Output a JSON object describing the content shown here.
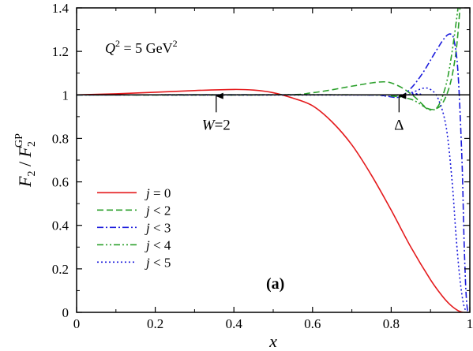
{
  "chart_data": {
    "type": "line",
    "panel_label": "(a)",
    "xlabel": "x",
    "ylabel": {
      "main": "F",
      "sub1": "2",
      "slash": " / ",
      "main2": "F",
      "sub2": "2",
      "sup2": "GP"
    },
    "condition": {
      "q": "Q",
      "exp": "2",
      "rest": " = 5 GeV",
      "unit_exp": "2"
    },
    "xlim": [
      0,
      1
    ],
    "ylim": [
      0,
      1.4
    ],
    "x_ticks": [
      0,
      0.2,
      0.4,
      0.6,
      0.8,
      1
    ],
    "x_tick_labels": [
      "0",
      "0.2",
      "0.4",
      "0.6",
      "0.8",
      "1"
    ],
    "y_ticks": [
      0,
      0.2,
      0.4,
      0.6,
      0.8,
      1,
      1.2,
      1.4
    ],
    "y_tick_labels": [
      "0",
      "0.2",
      "0.4",
      "0.6",
      "0.8",
      "1",
      "1.2",
      "1.4"
    ],
    "annotations": [
      {
        "text": "W=2",
        "x": 0.355,
        "arrow_from_y": 0.92,
        "arrow_to_y": 0.995
      },
      {
        "text": "Δ",
        "x": 0.82,
        "arrow_from_y": 0.92,
        "arrow_to_y": 0.995
      }
    ],
    "legend": {
      "position": "left-middle"
    },
    "series": [
      {
        "name": "j = 0",
        "color": "#e41a1c",
        "dash": "solid",
        "points": [
          [
            0,
            1.0
          ],
          [
            0.1,
            1.005
          ],
          [
            0.2,
            1.012
          ],
          [
            0.3,
            1.02
          ],
          [
            0.4,
            1.025
          ],
          [
            0.45,
            1.022
          ],
          [
            0.5,
            1.01
          ],
          [
            0.55,
            0.985
          ],
          [
            0.6,
            0.95
          ],
          [
            0.65,
            0.875
          ],
          [
            0.7,
            0.77
          ],
          [
            0.75,
            0.63
          ],
          [
            0.8,
            0.47
          ],
          [
            0.85,
            0.3
          ],
          [
            0.9,
            0.15
          ],
          [
            0.93,
            0.075
          ],
          [
            0.95,
            0.035
          ],
          [
            0.97,
            0.008
          ],
          [
            0.985,
            0.0
          ],
          [
            1.0,
            0.0
          ]
        ]
      },
      {
        "name": "j < 2",
        "color": "#2ca02c",
        "dash": "dashed",
        "points": [
          [
            0,
            1.0
          ],
          [
            0.5,
            1.0
          ],
          [
            0.6,
            1.01
          ],
          [
            0.7,
            1.04
          ],
          [
            0.75,
            1.055
          ],
          [
            0.78,
            1.06
          ],
          [
            0.8,
            1.055
          ],
          [
            0.83,
            1.03
          ],
          [
            0.86,
            0.99
          ],
          [
            0.89,
            0.94
          ],
          [
            0.91,
            0.935
          ],
          [
            0.93,
            0.96
          ],
          [
            0.95,
            1.05
          ],
          [
            0.965,
            1.2
          ],
          [
            0.975,
            1.4
          ]
        ]
      },
      {
        "name": "j < 3",
        "color": "#1a1adc",
        "dash": "dashdot",
        "points": [
          [
            0,
            1.0
          ],
          [
            0.7,
            1.0
          ],
          [
            0.78,
            0.995
          ],
          [
            0.82,
            0.99
          ],
          [
            0.85,
            1.03
          ],
          [
            0.88,
            1.1
          ],
          [
            0.91,
            1.19
          ],
          [
            0.935,
            1.26
          ],
          [
            0.95,
            1.28
          ],
          [
            0.96,
            1.25
          ],
          [
            0.97,
            1.1
          ],
          [
            0.98,
            0.7
          ],
          [
            0.985,
            0.35
          ],
          [
            0.99,
            0.1
          ],
          [
            0.995,
            0.0
          ],
          [
            1.0,
            0.0
          ]
        ]
      },
      {
        "name": "j < 4",
        "color": "#2ca02c",
        "dash": "dashdotdot",
        "points": [
          [
            0,
            1.0
          ],
          [
            0.75,
            1.0
          ],
          [
            0.8,
            0.995
          ],
          [
            0.85,
            0.98
          ],
          [
            0.88,
            0.95
          ],
          [
            0.9,
            0.93
          ],
          [
            0.92,
            0.95
          ],
          [
            0.94,
            1.05
          ],
          [
            0.955,
            1.2
          ],
          [
            0.97,
            1.4
          ]
        ]
      },
      {
        "name": "j < 5",
        "color": "#1a1adc",
        "dash": "dotted",
        "points": [
          [
            0,
            1.0
          ],
          [
            0.8,
            1.0
          ],
          [
            0.85,
            1.01
          ],
          [
            0.88,
            1.03
          ],
          [
            0.9,
            1.025
          ],
          [
            0.92,
            0.98
          ],
          [
            0.94,
            0.85
          ],
          [
            0.955,
            0.6
          ],
          [
            0.965,
            0.35
          ],
          [
            0.975,
            0.15
          ],
          [
            0.985,
            0.03
          ],
          [
            0.995,
            0.0
          ],
          [
            1.0,
            0.0
          ]
        ]
      }
    ]
  }
}
